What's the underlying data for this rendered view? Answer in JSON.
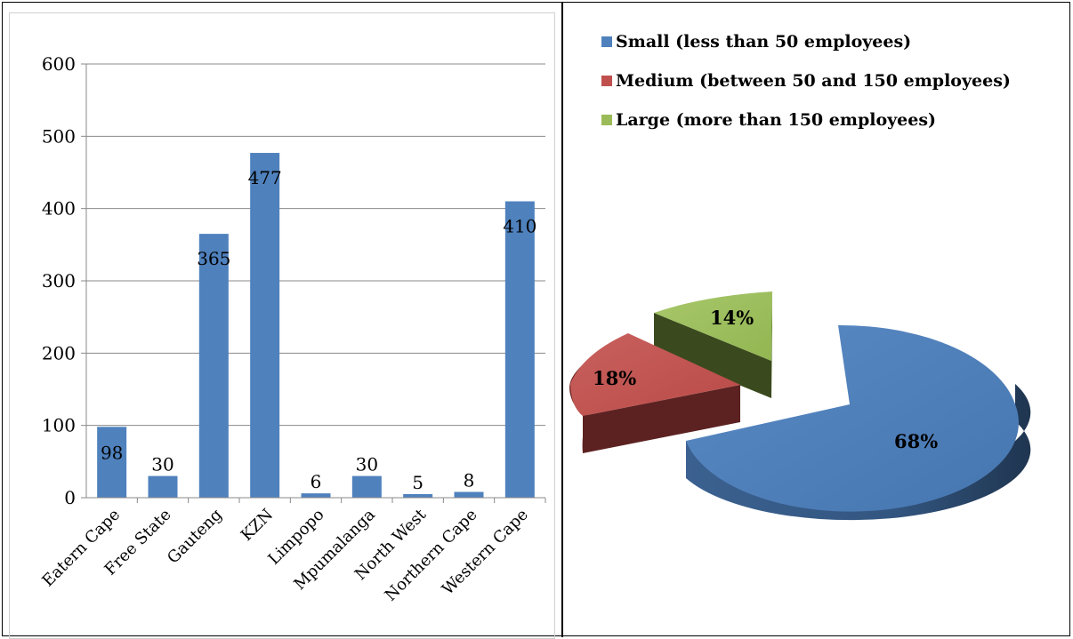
{
  "chart_data": [
    {
      "type": "bar",
      "categories": [
        "Eatern Cape",
        "Free State",
        "Gauteng",
        "KZN",
        "Limpopo",
        "Mpumalanga",
        "North West",
        "Northern Cape",
        "Western Cape"
      ],
      "values": [
        98,
        30,
        365,
        477,
        6,
        30,
        5,
        8,
        410
      ],
      "data_labels": [
        "98",
        "30",
        "365",
        "477",
        "6",
        "30",
        "5",
        "8",
        "410"
      ],
      "yticks": [
        "0",
        "100",
        "200",
        "300",
        "400",
        "500",
        "600"
      ],
      "ylim": [
        0,
        600
      ],
      "grid": true,
      "bar_color": "#4f81bd"
    },
    {
      "type": "pie",
      "style": "3d-exploded",
      "series": [
        {
          "name": "Small (less than 50 employees)",
          "value": 68,
          "label": "68%",
          "color": "#4f81bd"
        },
        {
          "name": "Medium (between 50 and 150 employees)",
          "value": 18,
          "label": "18%",
          "color": "#c0504d"
        },
        {
          "name": "Large (more than 150 employees)",
          "value": 14,
          "label": "14%",
          "color": "#9bbb59"
        }
      ],
      "legend_position": "top"
    }
  ]
}
